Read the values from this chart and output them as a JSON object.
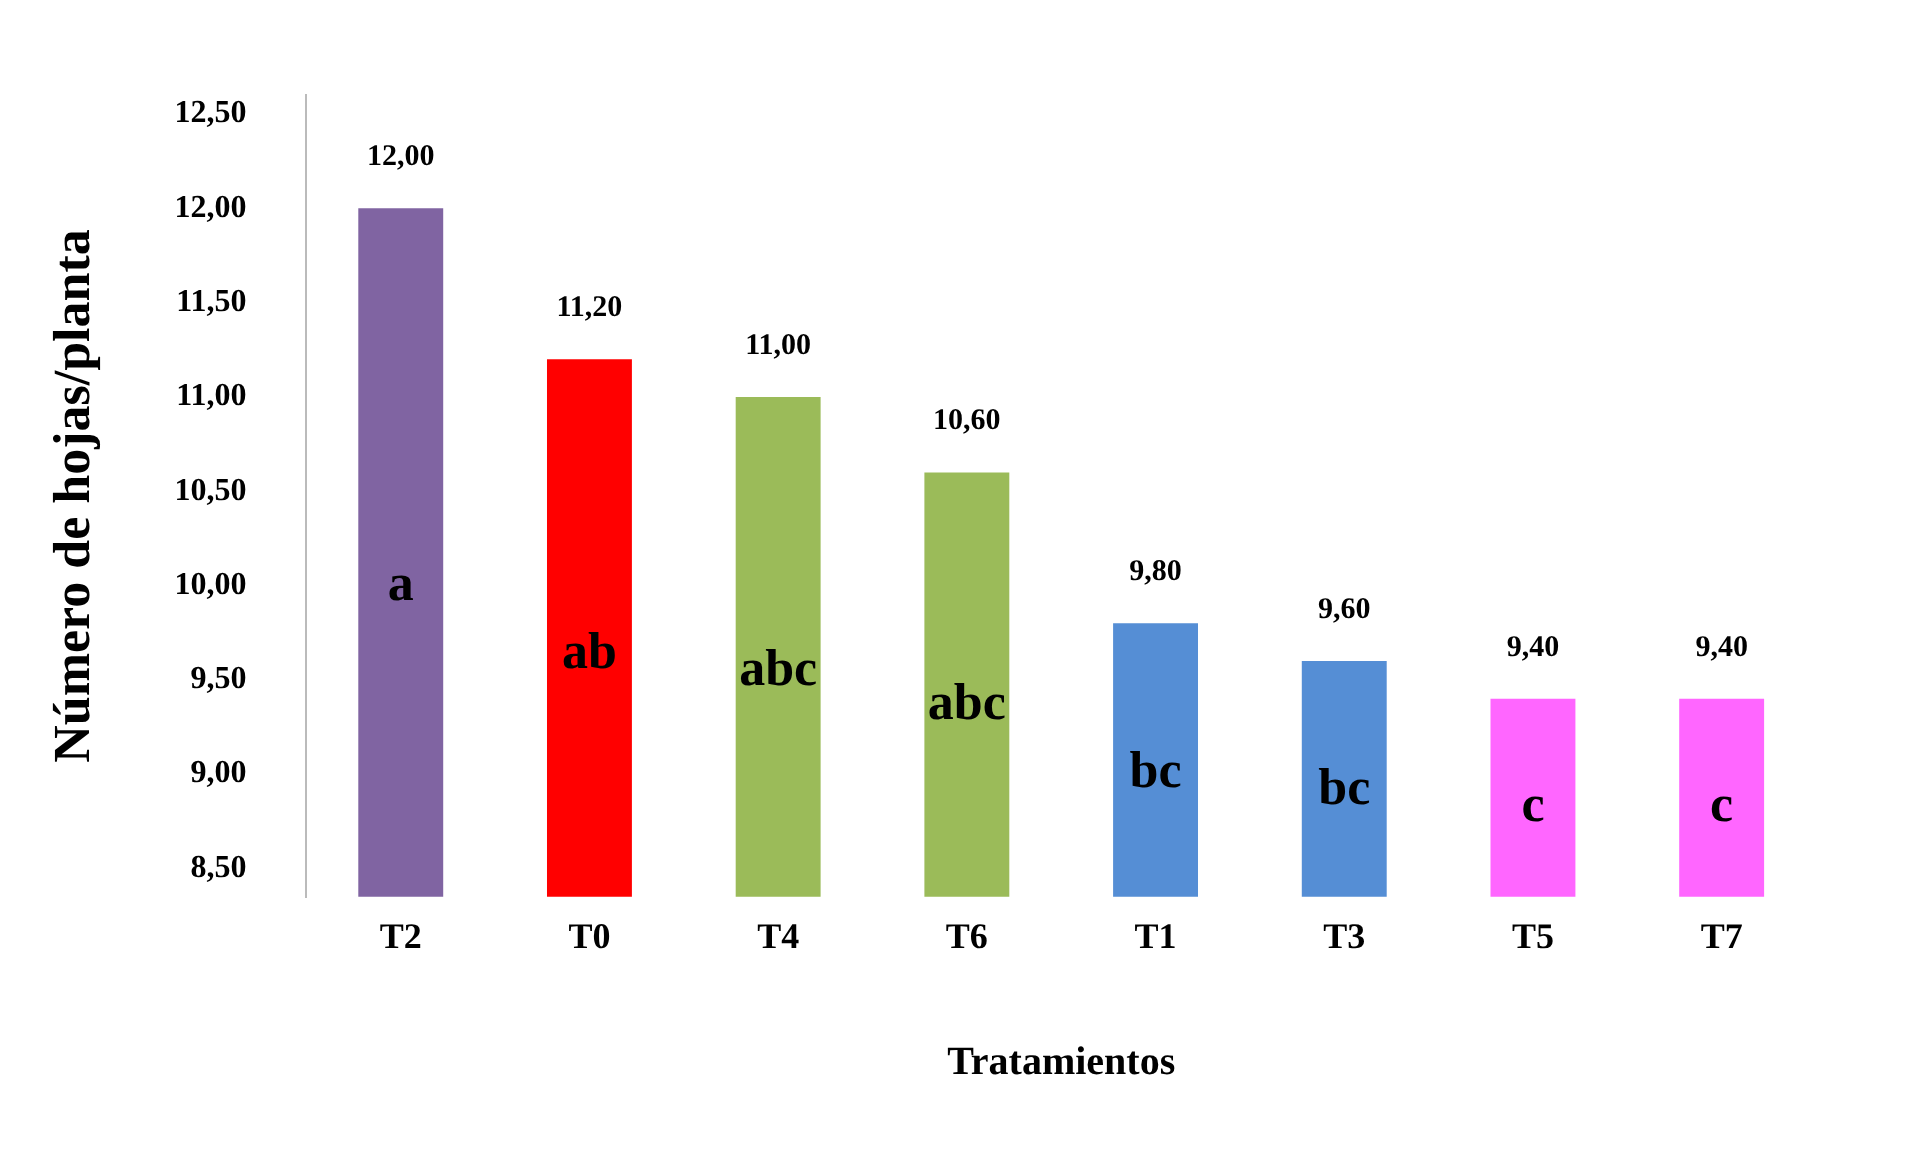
{
  "chart_data": {
    "type": "bar",
    "xlabel": "Tratamientos",
    "ylabel": "Número de hojas/planta",
    "categories": [
      "T2",
      "T0",
      "T4",
      "T6",
      "T1",
      "T3",
      "T5",
      "T7"
    ],
    "values": [
      12.0,
      11.2,
      11.0,
      10.6,
      9.8,
      9.6,
      9.4,
      9.4
    ],
    "colors": [
      "#8064a2",
      "#ff0000",
      "#9bbb59",
      "#9bbb59",
      "#558ed5",
      "#558ed5",
      "#ff66ff",
      "#ff66ff"
    ],
    "ylim": [
      8.35,
      12.6
    ],
    "yticks": [
      {
        "value": 8.5,
        "label": "8,50"
      },
      {
        "value": 9,
        "label": "9,00"
      },
      {
        "value": 9.5,
        "label": "9,50"
      },
      {
        "value": 10,
        "label": "10,00"
      },
      {
        "value": 10.5,
        "label": "10,50"
      },
      {
        "value": 11,
        "label": "11,00"
      },
      {
        "value": 11.5,
        "label": "11,50"
      },
      {
        "value": 12,
        "label": "12,00"
      },
      {
        "value": 12.5,
        "label": "12,50"
      }
    ],
    "grid": false,
    "legend": false,
    "data_labels": true,
    "value_labels": [
      "12,00",
      "11,20",
      "11,00",
      "10,60",
      "9,80",
      "9,60",
      "9,40",
      "9,40"
    ],
    "annotations": [
      "a",
      "ab",
      "abc",
      "abc",
      "bc",
      "bc",
      "c",
      "c"
    ]
  }
}
